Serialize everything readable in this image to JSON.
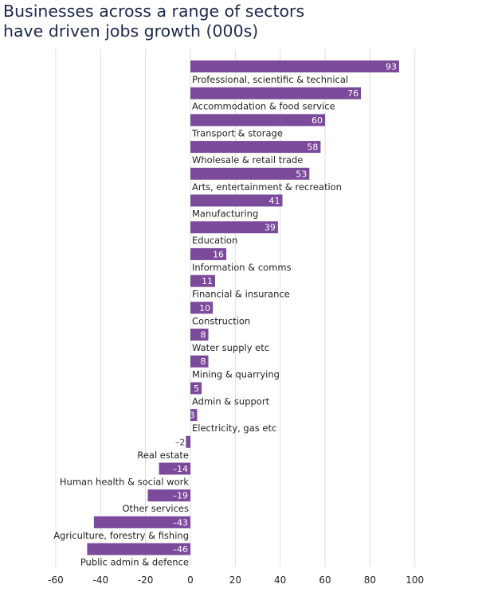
{
  "chart_data": {
    "type": "bar",
    "orientation": "horizontal",
    "title_lines": [
      "Businesses across a range of sectors",
      "have driven jobs growth (000s)"
    ],
    "categories": [
      "Professional, scientific & technical",
      "Accommodation & food service",
      "Transport & storage",
      "Wholesale & retail trade",
      "Arts, entertainment & recreation",
      "Manufacturing",
      "Education",
      "Information & comms",
      "Financial & insurance",
      "Construction",
      "Water supply etc",
      "Mining & quarrying",
      "Admin & support",
      "Electricity, gas etc",
      "Real estate",
      "Human health & social work",
      "Other services",
      "Agriculture, forestry & fishing",
      "Public admin & defence"
    ],
    "values": [
      93,
      76,
      60,
      58,
      53,
      41,
      39,
      16,
      11,
      10,
      8,
      8,
      5,
      3,
      -2,
      -14,
      -19,
      -43,
      -46
    ],
    "value_labels": [
      "93",
      "76",
      "60",
      "58",
      "53",
      "41",
      "39",
      "16",
      "11",
      "10",
      "8",
      "8",
      "5",
      "3",
      "–2",
      "–14",
      "–19",
      "–43",
      "–46"
    ],
    "xlim": [
      -60,
      100
    ],
    "xticks": [
      -60,
      -40,
      -20,
      0,
      20,
      40,
      60,
      80,
      100
    ],
    "xtick_labels": [
      "-60",
      "-40",
      "-20",
      "0",
      "20",
      "40",
      "60",
      "80",
      "100"
    ],
    "grid": true,
    "bar_color": "#7b4a9a",
    "grid_color": "#dddddd",
    "title_color": "#1e2a4a"
  }
}
